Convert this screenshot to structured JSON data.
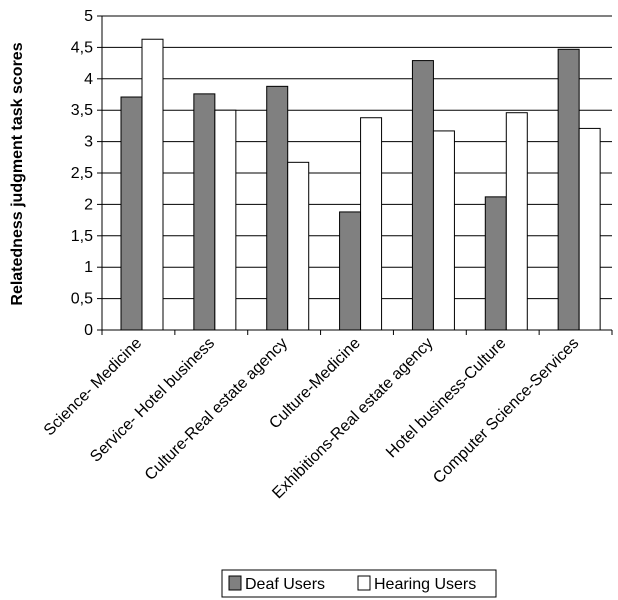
{
  "chart_data": {
    "type": "bar",
    "ylabel": "Relatedness judgment task scores",
    "xlabel": "",
    "ylim": [
      0,
      5
    ],
    "yticks": [
      "0",
      "0,5",
      "1",
      "1,5",
      "2",
      "2,5",
      "3",
      "3,5",
      "4",
      "4,5",
      "5"
    ],
    "ytick_values": [
      0,
      0.5,
      1,
      1.5,
      2,
      2.5,
      3,
      3.5,
      4,
      4.5,
      5
    ],
    "grid": "horizontal",
    "legend_position": "bottom",
    "categories": [
      "Science- Medicine",
      "Service- Hotel business",
      "Culture-Real estate agency",
      "Culture-Medicine",
      "Exhibitions-Real estate agency",
      "Hotel business-Culture",
      "Computer Science-Services"
    ],
    "series": [
      {
        "name": "Deaf Users",
        "color": "#808080",
        "values": [
          3.71,
          3.76,
          3.88,
          1.88,
          4.29,
          2.12,
          4.47
        ]
      },
      {
        "name": "Hearing Users",
        "color": "#ffffff",
        "values": [
          4.63,
          3.5,
          2.67,
          3.38,
          3.17,
          3.46,
          3.21
        ]
      }
    ]
  }
}
